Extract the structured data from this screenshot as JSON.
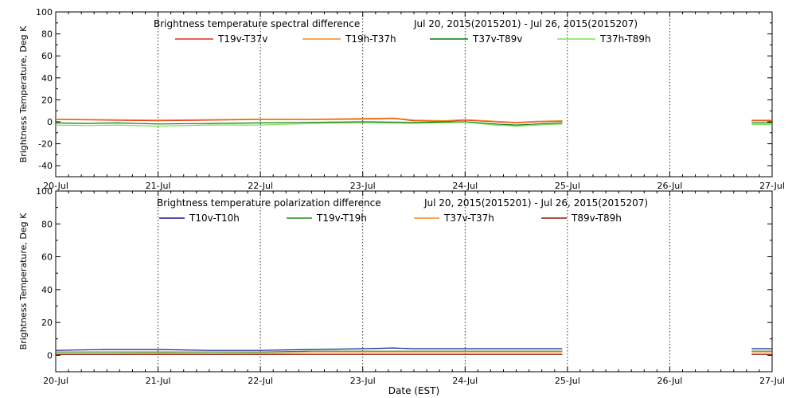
{
  "chart_data": [
    {
      "type": "line",
      "title": "Brightness temperature spectral difference",
      "date_range": "Jul 20, 2015(2015201) - Jul 26, 2015(2015207)",
      "ylabel": "Brightness Temperature, Deg K",
      "xlabel": "",
      "ylim": [
        -50,
        100
      ],
      "yticks": [
        "-40",
        "-20",
        "0",
        "20",
        "40",
        "60",
        "80",
        "100"
      ],
      "x": [
        "20-Jul",
        "21-Jul",
        "22-Jul",
        "23-Jul",
        "24-Jul",
        "25-Jul",
        "26-Jul",
        "27-Jul"
      ],
      "grid": "vertical dotted at day boundaries",
      "legend_position": "top",
      "series": [
        {
          "name": "T19v-T37v",
          "color": "#e8281e",
          "points": [
            [
              0,
              2
            ],
            [
              0.5,
              1.5
            ],
            [
              1,
              1
            ],
            [
              1.5,
              1.5
            ],
            [
              2,
              2
            ],
            [
              2.5,
              2
            ],
            [
              3,
              2.5
            ],
            [
              3.3,
              3
            ],
            [
              3.5,
              1
            ],
            [
              3.8,
              0.5
            ],
            [
              4,
              1.5
            ],
            [
              4.3,
              0
            ],
            [
              4.5,
              -1
            ],
            [
              4.7,
              0
            ],
            [
              4.95,
              0.5
            ]
          ],
          "points_b": [
            [
              6.8,
              1
            ],
            [
              7,
              1
            ]
          ]
        },
        {
          "name": "T19h-T37h",
          "color": "#f08c1e",
          "points": [
            [
              0,
              2.5
            ],
            [
              0.5,
              2
            ],
            [
              1,
              1.5
            ],
            [
              1.5,
              2
            ],
            [
              2,
              2.5
            ],
            [
              2.5,
              2.5
            ],
            [
              3,
              3
            ],
            [
              3.3,
              3.5
            ],
            [
              3.5,
              1.5
            ],
            [
              3.8,
              1
            ],
            [
              4,
              2
            ],
            [
              4.3,
              0.5
            ],
            [
              4.5,
              -0.5
            ],
            [
              4.7,
              0.5
            ],
            [
              4.95,
              1
            ]
          ],
          "points_b": [
            [
              6.8,
              1.5
            ],
            [
              7,
              1.5
            ]
          ]
        },
        {
          "name": "T37v-T89v",
          "color": "#0a7a0a",
          "points": [
            [
              0,
              -1
            ],
            [
              0.3,
              -1.5
            ],
            [
              0.6,
              -1
            ],
            [
              1,
              -2
            ],
            [
              1.5,
              -1.5
            ],
            [
              2,
              -1
            ],
            [
              2.5,
              -0.5
            ],
            [
              3,
              0
            ],
            [
              3.5,
              -0.5
            ],
            [
              4,
              0
            ],
            [
              4.3,
              -2
            ],
            [
              4.5,
              -3
            ],
            [
              4.7,
              -2
            ],
            [
              4.95,
              -1
            ]
          ],
          "points_b": [
            [
              6.8,
              -1
            ],
            [
              7,
              -1
            ]
          ]
        },
        {
          "name": "T37h-T89h",
          "color": "#7ae05a",
          "points": [
            [
              0,
              -3
            ],
            [
              0.3,
              -3.5
            ],
            [
              0.6,
              -3
            ],
            [
              1,
              -4
            ],
            [
              1.5,
              -3
            ],
            [
              2,
              -3
            ],
            [
              2.5,
              -1.5
            ],
            [
              3,
              -1
            ],
            [
              3.5,
              -1.5
            ],
            [
              4,
              -0.5
            ],
            [
              4.3,
              -3
            ],
            [
              4.5,
              -4
            ],
            [
              4.7,
              -3
            ],
            [
              4.95,
              -2
            ]
          ],
          "points_b": [
            [
              6.8,
              -2.5
            ],
            [
              7,
              -2.5
            ]
          ]
        }
      ]
    },
    {
      "type": "line",
      "title": "Brightness temperature polarization difference",
      "date_range": "Jul 20, 2015(2015201) - Jul 26, 2015(2015207)",
      "ylabel": "Brightness Temperature, Deg K",
      "xlabel": "Date (EST)",
      "ylim": [
        -10,
        100
      ],
      "yticks": [
        "0",
        "20",
        "40",
        "60",
        "80",
        "100"
      ],
      "x": [
        "20-Jul",
        "21-Jul",
        "22-Jul",
        "23-Jul",
        "24-Jul",
        "25-Jul",
        "26-Jul",
        "27-Jul"
      ],
      "grid": "vertical dotted at day boundaries",
      "legend_position": "top",
      "series": [
        {
          "name": "T10v-T10h",
          "color": "#1a1a8a",
          "points": [
            [
              0,
              3
            ],
            [
              0.5,
              3.5
            ],
            [
              1,
              3.5
            ],
            [
              1.5,
              3
            ],
            [
              2,
              3
            ],
            [
              2.5,
              3.5
            ],
            [
              3,
              4
            ],
            [
              3.3,
              4.5
            ],
            [
              3.5,
              4
            ],
            [
              4,
              4
            ],
            [
              4.5,
              4
            ],
            [
              4.95,
              4
            ]
          ],
          "points_b": [
            [
              6.8,
              4
            ],
            [
              7,
              4
            ]
          ]
        },
        {
          "name": "T19v-T19h",
          "color": "#1e8c1e",
          "points": [
            [
              0,
              2
            ],
            [
              0.5,
              2
            ],
            [
              1,
              2
            ],
            [
              1.5,
              2
            ],
            [
              2,
              2
            ],
            [
              2.5,
              2.5
            ],
            [
              3,
              2.5
            ],
            [
              3.5,
              2.5
            ],
            [
              4,
              2.5
            ],
            [
              4.5,
              2.5
            ],
            [
              4.95,
              2.5
            ]
          ],
          "points_b": [
            [
              6.8,
              2.5
            ],
            [
              7,
              2.5
            ]
          ]
        },
        {
          "name": "T37v-T37h",
          "color": "#f08c1e",
          "points": [
            [
              0,
              1
            ],
            [
              0.5,
              1
            ],
            [
              1,
              1.2
            ],
            [
              1.5,
              1
            ],
            [
              2,
              1.2
            ],
            [
              2.5,
              1.5
            ],
            [
              3,
              1.5
            ],
            [
              3.5,
              1.5
            ],
            [
              4,
              1.5
            ],
            [
              4.5,
              1.5
            ],
            [
              4.95,
              1.5
            ]
          ],
          "points_b": [
            [
              6.8,
              1.5
            ],
            [
              7,
              1.5
            ]
          ]
        },
        {
          "name": "T89v-T89h",
          "color": "#8a1a0a",
          "points": [
            [
              0,
              0.5
            ],
            [
              0.5,
              0.5
            ],
            [
              1,
              0.5
            ],
            [
              1.5,
              0.5
            ],
            [
              2,
              0.5
            ],
            [
              2.5,
              0.5
            ],
            [
              3,
              0.5
            ],
            [
              3.5,
              0.5
            ],
            [
              4,
              0.5
            ],
            [
              4.5,
              0.5
            ],
            [
              4.95,
              0.5
            ]
          ],
          "points_b": [
            [
              6.8,
              0.5
            ],
            [
              7,
              0.5
            ]
          ]
        }
      ]
    }
  ]
}
